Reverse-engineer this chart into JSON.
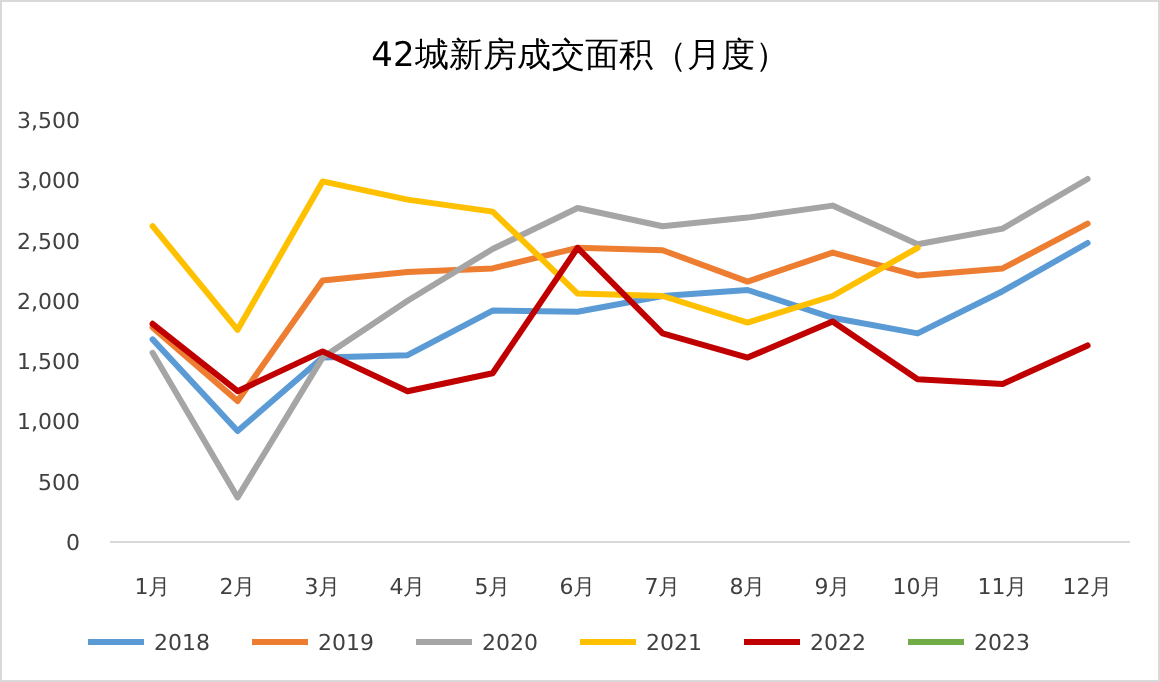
{
  "chart_data": {
    "type": "line",
    "title": "42城新房成交面积（月度）",
    "categories": [
      "1月",
      "2月",
      "3月",
      "4月",
      "5月",
      "6月",
      "7月",
      "8月",
      "9月",
      "10月",
      "11月",
      "12月"
    ],
    "ylim": [
      0,
      3500
    ],
    "yticks": [
      0,
      {
        "value": 500,
        "label": "500"
      },
      {
        "value": 1000,
        "label": "1,000"
      },
      {
        "value": 1500,
        "label": "1,500"
      },
      {
        "value": 2000,
        "label": "2,000"
      },
      {
        "value": 2500,
        "label": "2,500"
      },
      {
        "value": 3000,
        "label": "3,000"
      },
      {
        "value": 3500,
        "label": "3,500"
      }
    ],
    "legend": "bottom",
    "marker": "none",
    "series": [
      {
        "name": "2018",
        "color": "#5b9bd5",
        "values": [
          1680,
          920,
          1530,
          1550,
          1920,
          1910,
          2040,
          2090,
          1860,
          1730,
          2080,
          2480
        ]
      },
      {
        "name": "2019",
        "color": "#ed7d31",
        "values": [
          1780,
          1170,
          2170,
          2240,
          2270,
          2440,
          2420,
          2160,
          2400,
          2210,
          2270,
          2640
        ]
      },
      {
        "name": "2020",
        "color": "#a5a5a5",
        "values": [
          1570,
          370,
          1530,
          2000,
          2430,
          2770,
          2620,
          2690,
          2790,
          2470,
          2600,
          3010
        ]
      },
      {
        "name": "2021",
        "color": "#ffc000",
        "values": [
          2620,
          1760,
          2990,
          2840,
          2740,
          2060,
          2040,
          1820,
          2040,
          2440,
          null,
          null
        ]
      },
      {
        "name": "2022",
        "color": "#c00000",
        "values": [
          1810,
          1250,
          1580,
          1250,
          1400,
          2440,
          1730,
          1530,
          1830,
          1350,
          1310,
          1630
        ]
      },
      {
        "name": "2023",
        "color": "#70ad47",
        "values": [
          null,
          null,
          null,
          null,
          null,
          null,
          null,
          null,
          null,
          null,
          null,
          null
        ]
      }
    ]
  }
}
